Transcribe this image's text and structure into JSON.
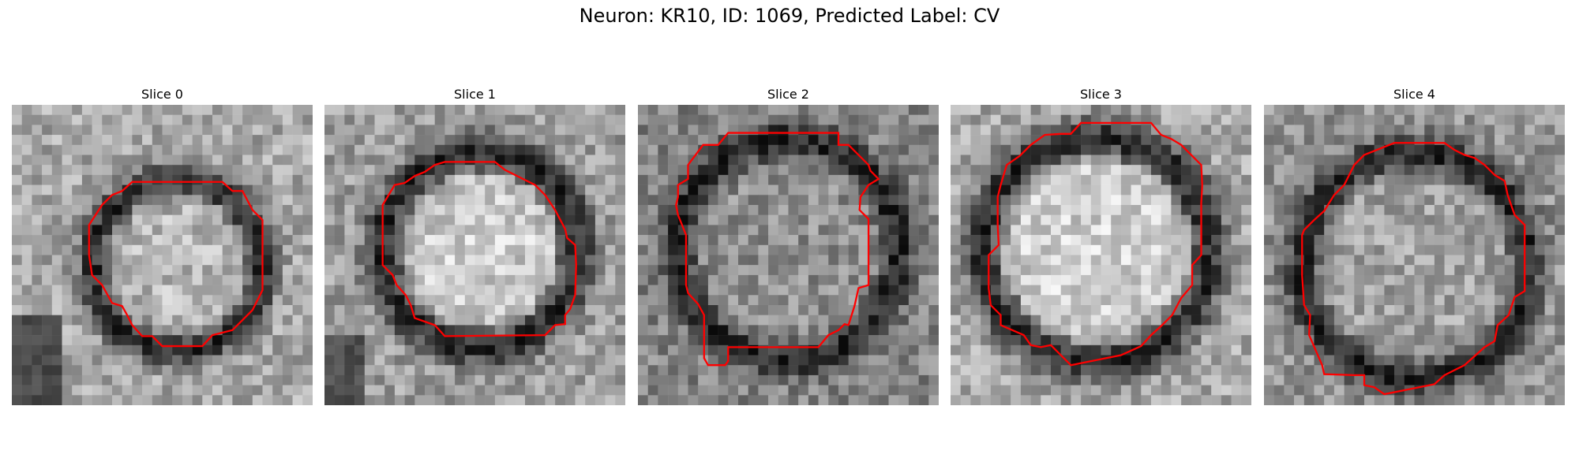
{
  "figure": {
    "suptitle": "Neuron: KR10, ID: 1069, Predicted Label: CV",
    "contour_color": "#ff0000",
    "colormap": "gray"
  },
  "panels": [
    {
      "title": "Slice 0"
    },
    {
      "title": "Slice 1"
    },
    {
      "title": "Slice 2"
    },
    {
      "title": "Slice 3"
    },
    {
      "title": "Slice 4"
    }
  ]
}
